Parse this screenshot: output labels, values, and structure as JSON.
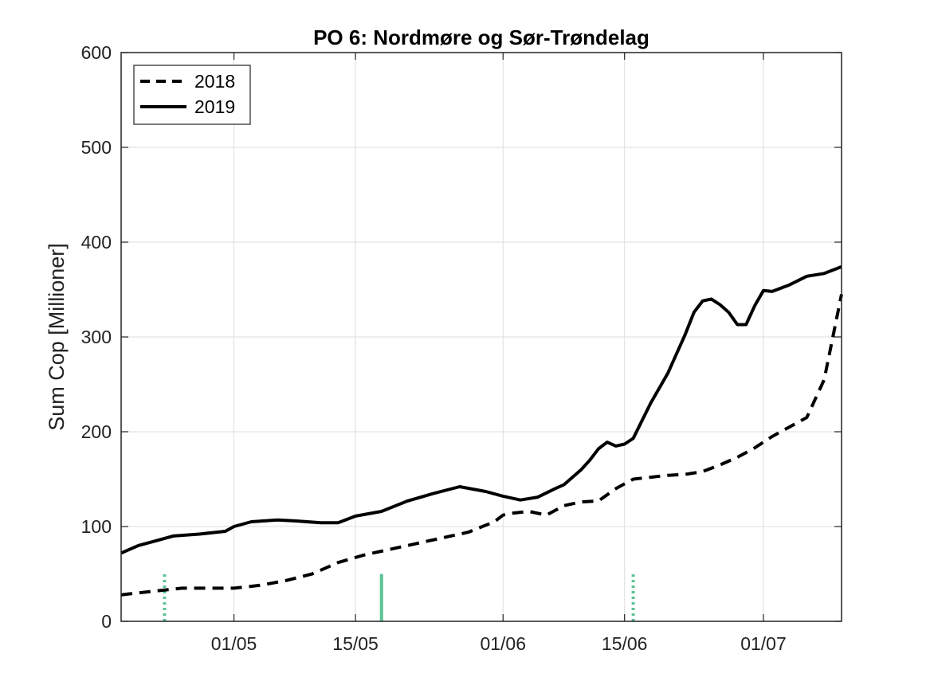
{
  "chart_data": {
    "type": "line",
    "title": "PO 6: Nordmøre og Sør-Trøndelag",
    "ylabel": "Sum Cop [Millioner]",
    "xlabel": "",
    "x_range": [
      "2019-04-18",
      "2019-07-10"
    ],
    "ylim": [
      0,
      600
    ],
    "yticks": [
      0,
      100,
      200,
      300,
      400,
      500,
      600
    ],
    "xticks": [
      {
        "date": "2019-05-01",
        "label": "01/05"
      },
      {
        "date": "2019-05-15",
        "label": "15/05"
      },
      {
        "date": "2019-06-01",
        "label": "01/06"
      },
      {
        "date": "2019-06-15",
        "label": "15/06"
      },
      {
        "date": "2019-07-01",
        "label": "01/07"
      }
    ],
    "grid": true,
    "legend": "top-left",
    "series": [
      {
        "name": "2018",
        "style": "dashed",
        "color": "#000000",
        "x": [
          "2019-04-18",
          "2019-04-20",
          "2019-04-23",
          "2019-04-25",
          "2019-04-28",
          "2019-05-01",
          "2019-05-04",
          "2019-05-07",
          "2019-05-10",
          "2019-05-13",
          "2019-05-16",
          "2019-05-19",
          "2019-05-22",
          "2019-05-25",
          "2019-05-28",
          "2019-05-31",
          "2019-06-01",
          "2019-06-02",
          "2019-06-04",
          "2019-06-06",
          "2019-06-08",
          "2019-06-10",
          "2019-06-12",
          "2019-06-14",
          "2019-06-16",
          "2019-06-18",
          "2019-06-20",
          "2019-06-22",
          "2019-06-24",
          "2019-06-26",
          "2019-06-28",
          "2019-06-30",
          "2019-07-02",
          "2019-07-04",
          "2019-07-06",
          "2019-07-08",
          "2019-07-10"
        ],
        "y": [
          28,
          30,
          33,
          35,
          35,
          35,
          38,
          43,
          50,
          62,
          70,
          76,
          82,
          88,
          94,
          105,
          112,
          114,
          116,
          112,
          122,
          126,
          127,
          140,
          150,
          152,
          154,
          155,
          158,
          165,
          173,
          183,
          195,
          205,
          215,
          255,
          345
        ]
      },
      {
        "name": "2019",
        "style": "solid",
        "color": "#000000",
        "x": [
          "2019-04-18",
          "2019-04-20",
          "2019-04-22",
          "2019-04-24",
          "2019-04-27",
          "2019-04-30",
          "2019-05-01",
          "2019-05-03",
          "2019-05-06",
          "2019-05-08",
          "2019-05-11",
          "2019-05-13",
          "2019-05-15",
          "2019-05-18",
          "2019-05-21",
          "2019-05-24",
          "2019-05-27",
          "2019-05-30",
          "2019-06-01",
          "2019-06-03",
          "2019-06-05",
          "2019-06-07",
          "2019-06-08",
          "2019-06-10",
          "2019-06-11",
          "2019-06-12",
          "2019-06-13",
          "2019-06-14",
          "2019-06-15",
          "2019-06-16",
          "2019-06-18",
          "2019-06-20",
          "2019-06-22",
          "2019-06-23",
          "2019-06-24",
          "2019-06-25",
          "2019-06-26",
          "2019-06-27",
          "2019-06-28",
          "2019-06-29",
          "2019-06-30",
          "2019-07-01",
          "2019-07-02",
          "2019-07-04",
          "2019-07-06",
          "2019-07-08",
          "2019-07-10"
        ],
        "y": [
          72,
          80,
          85,
          90,
          92,
          95,
          100,
          105,
          107,
          106,
          104,
          104,
          111,
          116,
          127,
          135,
          142,
          137,
          132,
          128,
          131,
          140,
          144,
          160,
          170,
          182,
          189,
          185,
          187,
          193,
          230,
          262,
          303,
          326,
          338,
          340,
          334,
          326,
          313,
          313,
          333,
          349,
          348,
          355,
          364,
          367,
          374
        ]
      }
    ],
    "markers": [
      {
        "date": "2019-04-23",
        "style": "dotted",
        "color": "#5cc395",
        "y_top": 50
      },
      {
        "date": "2019-05-18",
        "style": "solid",
        "color": "#5cc395",
        "y_top": 50
      },
      {
        "date": "2019-06-16",
        "style": "dotted",
        "color": "#5cc395",
        "y_top": 50
      }
    ]
  }
}
